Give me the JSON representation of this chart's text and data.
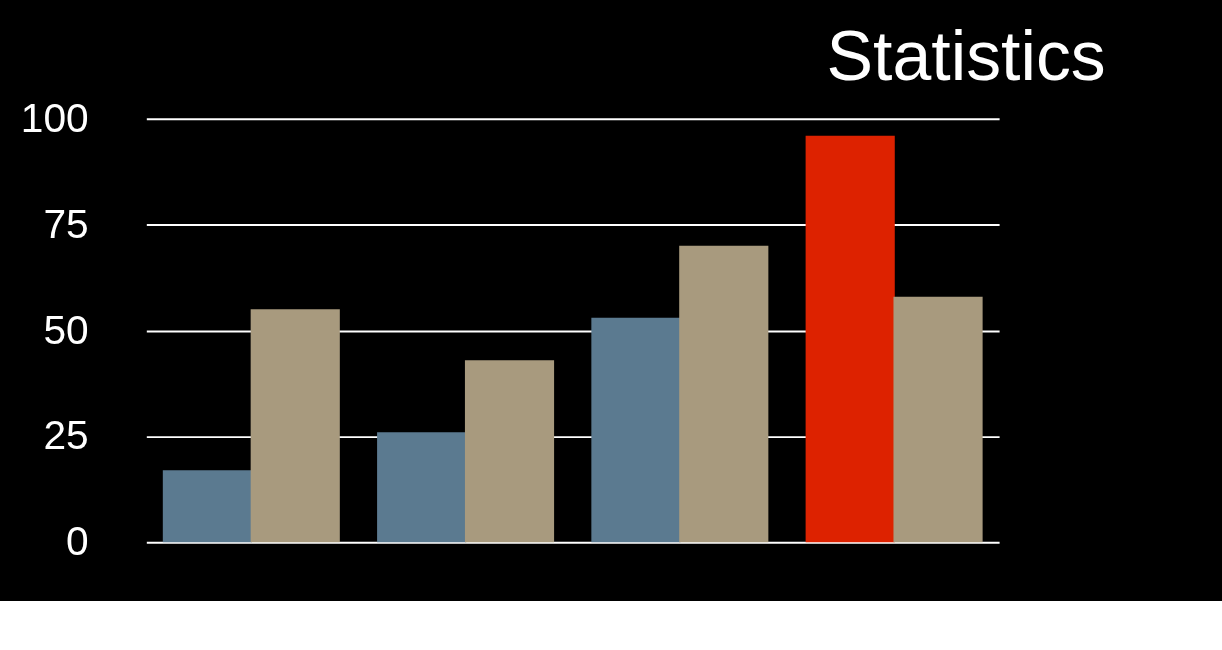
{
  "chart_data": {
    "type": "bar",
    "title": "Statistics",
    "categories": [
      null,
      null,
      null,
      null
    ],
    "series": [
      {
        "color": "#5b7a90",
        "colors": [
          null,
          null,
          null,
          "#dd2200"
        ],
        "values": [
          17,
          26,
          53,
          96
        ]
      },
      {
        "color": "#a89a7e",
        "values": [
          55,
          43,
          70,
          58
        ]
      }
    ],
    "ylim": [
      0,
      100
    ],
    "yticks": [
      0,
      25,
      50,
      75,
      100
    ],
    "grid": "y",
    "tick_labels": "y"
  }
}
